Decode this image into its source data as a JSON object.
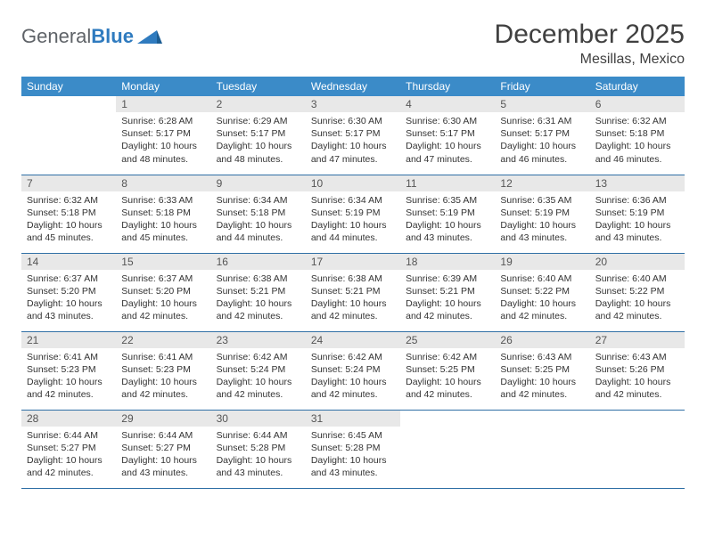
{
  "brand": {
    "part1": "General",
    "part2": "Blue"
  },
  "title": "December 2025",
  "location": "Mesillas, Mexico",
  "weekday_headers": [
    "Sunday",
    "Monday",
    "Tuesday",
    "Wednesday",
    "Thursday",
    "Friday",
    "Saturday"
  ],
  "colors": {
    "header_bg": "#3b8bc8",
    "header_text": "#ffffff",
    "daynum_bg": "#e8e8e8",
    "row_border": "#2f6fa5",
    "logo_grey": "#5f6368",
    "logo_blue": "#2f7bbf"
  },
  "first_weekday_offset": 1,
  "days": [
    {
      "n": 1,
      "sunrise": "6:28 AM",
      "sunset": "5:17 PM",
      "daylight": "10 hours and 48 minutes."
    },
    {
      "n": 2,
      "sunrise": "6:29 AM",
      "sunset": "5:17 PM",
      "daylight": "10 hours and 48 minutes."
    },
    {
      "n": 3,
      "sunrise": "6:30 AM",
      "sunset": "5:17 PM",
      "daylight": "10 hours and 47 minutes."
    },
    {
      "n": 4,
      "sunrise": "6:30 AM",
      "sunset": "5:17 PM",
      "daylight": "10 hours and 47 minutes."
    },
    {
      "n": 5,
      "sunrise": "6:31 AM",
      "sunset": "5:17 PM",
      "daylight": "10 hours and 46 minutes."
    },
    {
      "n": 6,
      "sunrise": "6:32 AM",
      "sunset": "5:18 PM",
      "daylight": "10 hours and 46 minutes."
    },
    {
      "n": 7,
      "sunrise": "6:32 AM",
      "sunset": "5:18 PM",
      "daylight": "10 hours and 45 minutes."
    },
    {
      "n": 8,
      "sunrise": "6:33 AM",
      "sunset": "5:18 PM",
      "daylight": "10 hours and 45 minutes."
    },
    {
      "n": 9,
      "sunrise": "6:34 AM",
      "sunset": "5:18 PM",
      "daylight": "10 hours and 44 minutes."
    },
    {
      "n": 10,
      "sunrise": "6:34 AM",
      "sunset": "5:19 PM",
      "daylight": "10 hours and 44 minutes."
    },
    {
      "n": 11,
      "sunrise": "6:35 AM",
      "sunset": "5:19 PM",
      "daylight": "10 hours and 43 minutes."
    },
    {
      "n": 12,
      "sunrise": "6:35 AM",
      "sunset": "5:19 PM",
      "daylight": "10 hours and 43 minutes."
    },
    {
      "n": 13,
      "sunrise": "6:36 AM",
      "sunset": "5:19 PM",
      "daylight": "10 hours and 43 minutes."
    },
    {
      "n": 14,
      "sunrise": "6:37 AM",
      "sunset": "5:20 PM",
      "daylight": "10 hours and 43 minutes."
    },
    {
      "n": 15,
      "sunrise": "6:37 AM",
      "sunset": "5:20 PM",
      "daylight": "10 hours and 42 minutes."
    },
    {
      "n": 16,
      "sunrise": "6:38 AM",
      "sunset": "5:21 PM",
      "daylight": "10 hours and 42 minutes."
    },
    {
      "n": 17,
      "sunrise": "6:38 AM",
      "sunset": "5:21 PM",
      "daylight": "10 hours and 42 minutes."
    },
    {
      "n": 18,
      "sunrise": "6:39 AM",
      "sunset": "5:21 PM",
      "daylight": "10 hours and 42 minutes."
    },
    {
      "n": 19,
      "sunrise": "6:40 AM",
      "sunset": "5:22 PM",
      "daylight": "10 hours and 42 minutes."
    },
    {
      "n": 20,
      "sunrise": "6:40 AM",
      "sunset": "5:22 PM",
      "daylight": "10 hours and 42 minutes."
    },
    {
      "n": 21,
      "sunrise": "6:41 AM",
      "sunset": "5:23 PM",
      "daylight": "10 hours and 42 minutes."
    },
    {
      "n": 22,
      "sunrise": "6:41 AM",
      "sunset": "5:23 PM",
      "daylight": "10 hours and 42 minutes."
    },
    {
      "n": 23,
      "sunrise": "6:42 AM",
      "sunset": "5:24 PM",
      "daylight": "10 hours and 42 minutes."
    },
    {
      "n": 24,
      "sunrise": "6:42 AM",
      "sunset": "5:24 PM",
      "daylight": "10 hours and 42 minutes."
    },
    {
      "n": 25,
      "sunrise": "6:42 AM",
      "sunset": "5:25 PM",
      "daylight": "10 hours and 42 minutes."
    },
    {
      "n": 26,
      "sunrise": "6:43 AM",
      "sunset": "5:25 PM",
      "daylight": "10 hours and 42 minutes."
    },
    {
      "n": 27,
      "sunrise": "6:43 AM",
      "sunset": "5:26 PM",
      "daylight": "10 hours and 42 minutes."
    },
    {
      "n": 28,
      "sunrise": "6:44 AM",
      "sunset": "5:27 PM",
      "daylight": "10 hours and 42 minutes."
    },
    {
      "n": 29,
      "sunrise": "6:44 AM",
      "sunset": "5:27 PM",
      "daylight": "10 hours and 43 minutes."
    },
    {
      "n": 30,
      "sunrise": "6:44 AM",
      "sunset": "5:28 PM",
      "daylight": "10 hours and 43 minutes."
    },
    {
      "n": 31,
      "sunrise": "6:45 AM",
      "sunset": "5:28 PM",
      "daylight": "10 hours and 43 minutes."
    }
  ],
  "labels": {
    "sunrise": "Sunrise:",
    "sunset": "Sunset:",
    "daylight": "Daylight:"
  }
}
